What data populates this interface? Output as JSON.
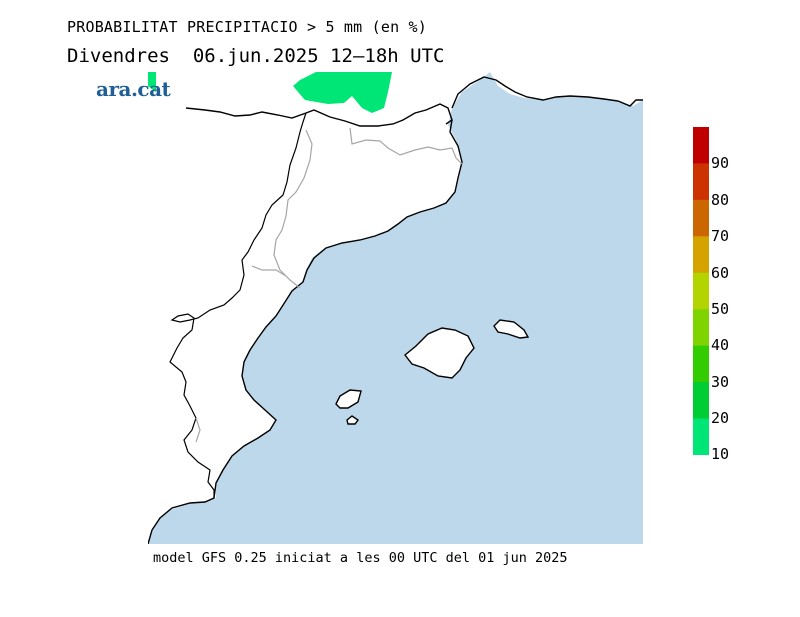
{
  "header": {
    "title": "PROBABILITAT PRECIPITACIO > 5 mm (en %)",
    "subtitle": "Divendres  06.jun.2025 12—18h UTC"
  },
  "logo": {
    "text": "ara.cat",
    "color": "#1f5f95"
  },
  "footer": {
    "text": "model GFS 0.25 iniciat a les 00 UTC del 01 jun 2025"
  },
  "map": {
    "sea_color": "#bcd8ea",
    "land_color": "#ffffff",
    "coast_color": "#000000",
    "border_color": "#a6a6a6",
    "precip_color": "#00e676"
  },
  "legend": {
    "labels": [
      "90",
      "80",
      "70",
      "60",
      "50",
      "40",
      "30",
      "20",
      "10"
    ],
    "colors": [
      "#c00000",
      "#cc3300",
      "#cc6600",
      "#d4a300",
      "#b4d400",
      "#7fd400",
      "#33cc00",
      "#00cc33",
      "#00e676"
    ]
  }
}
